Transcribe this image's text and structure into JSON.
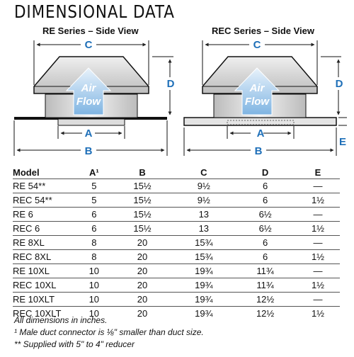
{
  "title": "DIMENSIONAL DATA",
  "views": {
    "re": {
      "title": "RE Series – Side View",
      "dims": {
        "a": "A",
        "b": "B",
        "c": "C",
        "d": "D"
      },
      "airflow": [
        "Air",
        "Flow"
      ]
    },
    "rec": {
      "title": "REC Series – Side View",
      "dims": {
        "a": "A",
        "b": "B",
        "c": "C",
        "d": "D",
        "e": "E"
      },
      "airflow": [
        "Air",
        "Flow"
      ]
    }
  },
  "colors": {
    "accent": "#1e6fb8",
    "arrow": "#b9d7f1",
    "cap": "#dcdcdc"
  },
  "table": {
    "headers": [
      "Model",
      "A¹",
      "B",
      "C",
      "D",
      "E"
    ],
    "rows": [
      [
        "RE 54**",
        "5",
        "15½",
        "9½",
        "6",
        "—"
      ],
      [
        "REC 54**",
        "5",
        "15½",
        "9½",
        "6",
        "1½"
      ],
      [
        "RE 6",
        "6",
        "15½",
        "13",
        "6½",
        "—"
      ],
      [
        "REC 6",
        "6",
        "15½",
        "13",
        "6½",
        "1½"
      ],
      [
        "RE 8XL",
        "8",
        "20",
        "15¾",
        "6",
        "—"
      ],
      [
        "REC 8XL",
        "8",
        "20",
        "15¾",
        "6",
        "1½"
      ],
      [
        "RE 10XL",
        "10",
        "20",
        "19¾",
        "11¾",
        "—"
      ],
      [
        "REC 10XL",
        "10",
        "20",
        "19¾",
        "11¾",
        "1½"
      ],
      [
        "RE 10XLT",
        "10",
        "20",
        "19¾",
        "12½",
        "—"
      ],
      [
        "REC 10XLT",
        "10",
        "20",
        "19¾",
        "12½",
        "1½"
      ]
    ]
  },
  "notes": [
    "All dimensions in inches.",
    "¹  Male duct connector is ⅛\" smaller than duct size.",
    "** Supplied with 5\" to 4\" reducer"
  ]
}
